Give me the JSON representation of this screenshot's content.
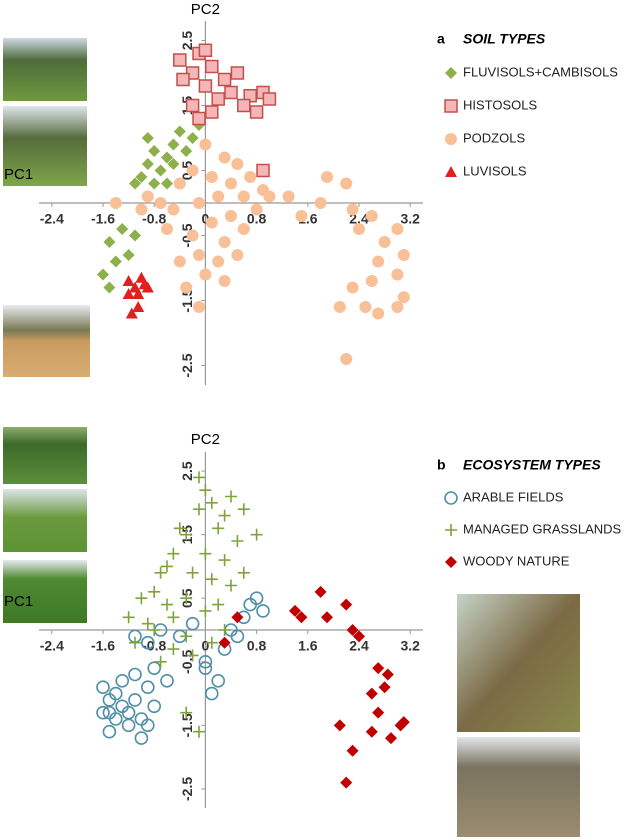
{
  "chart_data": [
    {
      "type": "scatter",
      "panel": "a",
      "title": "SOIL TYPES",
      "x_label": "PC1",
      "y_label": "PC2",
      "xlim": [
        -2.6,
        3.4
      ],
      "ylim": [
        -2.8,
        2.8
      ],
      "xticks": [
        -2.4,
        -1.6,
        -0.8,
        0,
        0.8,
        1.6,
        2.4,
        3.2
      ],
      "yticks": [
        -2.5,
        -1.5,
        -0.5,
        0.5,
        1.5,
        2.5
      ],
      "series": [
        {
          "name": "FLUVISOLS+CAMBISOLS",
          "color": "#8db04a",
          "marker": "diamond",
          "x": [
            -0.1,
            -0.2,
            -0.4,
            -0.3,
            -0.5,
            -0.6,
            -0.8,
            -0.7,
            -0.9,
            -1.0,
            -0.8,
            -1.1,
            -0.6,
            -0.9,
            -0.5,
            -1.3,
            -1.5,
            -1.4,
            -1.6,
            -1.5,
            -1.2,
            -1.1
          ],
          "values": [
            1.2,
            1.0,
            1.1,
            0.8,
            0.9,
            0.7,
            0.8,
            0.5,
            0.6,
            0.4,
            0.3,
            0.3,
            0.3,
            1.0,
            0.6,
            -0.4,
            -0.6,
            -0.9,
            -1.1,
            -1.3,
            -0.8,
            -0.5
          ]
        },
        {
          "name": "HISTOSOLS",
          "color": "#f4b6b6",
          "marker": "square",
          "x": [
            -0.4,
            -0.1,
            0.0,
            -0.2,
            0.1,
            -0.35,
            0.0,
            0.3,
            0.5,
            0.2,
            0.4,
            0.7,
            0.6,
            -0.2,
            0.1,
            0.9,
            0.8,
            1.0,
            -0.1,
            0.9
          ],
          "values": [
            2.2,
            2.3,
            2.35,
            2.0,
            2.1,
            1.9,
            1.8,
            1.9,
            2.0,
            1.6,
            1.7,
            1.65,
            1.5,
            1.5,
            1.4,
            1.7,
            1.4,
            1.6,
            1.3,
            0.5
          ]
        },
        {
          "name": "PODZOLS",
          "color": "#f9c097",
          "marker": "circle",
          "x": [
            0.0,
            0.3,
            0.1,
            -0.2,
            0.4,
            0.5,
            0.7,
            -0.4,
            0.2,
            -0.1,
            0.6,
            0.9,
            -0.7,
            -0.5,
            0.1,
            0.4,
            0.8,
            1.0,
            -0.2,
            0.3,
            0.6,
            -0.6,
            -0.1,
            0.2,
            0.5,
            -0.4,
            0.0,
            0.3,
            -0.3,
            -0.1,
            1.3,
            1.5,
            1.8,
            1.9,
            2.2,
            2.3,
            2.4,
            2.6,
            2.8,
            3.0,
            3.1,
            2.7,
            2.6,
            3.0,
            2.3,
            2.5,
            2.7,
            3.0,
            3.1,
            2.1,
            2.2,
            -1.4,
            -1.0,
            -0.9
          ],
          "values": [
            0.9,
            0.7,
            0.4,
            0.5,
            0.3,
            0.6,
            0.4,
            0.3,
            0.1,
            0.0,
            0.1,
            0.2,
            0.0,
            -0.1,
            -0.3,
            -0.2,
            -0.1,
            0.1,
            -0.5,
            -0.6,
            -0.4,
            -0.4,
            -0.8,
            -0.9,
            -0.8,
            -0.9,
            -1.1,
            -1.2,
            -1.3,
            -1.6,
            0.1,
            -0.2,
            0.0,
            0.4,
            0.3,
            -0.1,
            -0.4,
            -0.2,
            -0.6,
            -0.4,
            -0.8,
            -0.9,
            -1.2,
            -1.1,
            -1.3,
            -1.6,
            -1.7,
            -1.6,
            -1.45,
            -1.6,
            -2.4,
            0.0,
            -0.1,
            0.1
          ]
        },
        {
          "name": "LUVISOLS",
          "color": "#e02020",
          "marker": "triangle",
          "x": [
            -1.2,
            -1.1,
            -1.0,
            -0.9,
            -1.2,
            -1.05,
            -1.15,
            -1.05,
            -0.95
          ],
          "values": [
            -1.2,
            -1.3,
            -1.15,
            -1.3,
            -1.4,
            -1.4,
            -1.7,
            -1.6,
            -1.25
          ]
        }
      ]
    },
    {
      "type": "scatter",
      "panel": "b",
      "title": "ECOSYSTEM TYPES",
      "x_label": "PC1",
      "y_label": "PC2",
      "xlim": [
        -2.6,
        3.4
      ],
      "ylim": [
        -2.8,
        2.8
      ],
      "xticks": [
        -2.4,
        -1.6,
        -0.8,
        0,
        0.8,
        1.6,
        2.4,
        3.2
      ],
      "yticks": [
        -2.5,
        -1.5,
        -0.5,
        0.5,
        1.5,
        2.5
      ],
      "series": [
        {
          "name": "ARABLE FIELDS",
          "color": "#4f8fa8",
          "marker": "open-circle",
          "x": [
            -1.6,
            -1.5,
            -1.4,
            -1.5,
            -1.4,
            -1.3,
            -1.2,
            -1.1,
            -1.0,
            -1.2,
            -0.9,
            -1.0,
            -1.3,
            -1.1,
            -0.9,
            -0.8,
            -0.8,
            -0.6,
            -0.9,
            -1.1,
            -0.7,
            -0.4,
            0.0,
            0.2,
            0.1,
            0.0,
            0.3,
            0.4,
            0.6,
            0.7,
            0.8,
            0.9,
            0.5,
            -0.2,
            -1.5,
            -1.6
          ],
          "values": [
            -0.9,
            -1.1,
            -1.0,
            -1.3,
            -1.4,
            -1.2,
            -1.3,
            -1.1,
            -1.4,
            -1.5,
            -1.5,
            -1.7,
            -0.8,
            -0.7,
            -0.9,
            -1.2,
            -0.6,
            -0.8,
            -0.2,
            -0.1,
            0.0,
            -0.1,
            -0.5,
            -0.8,
            -1.0,
            -0.6,
            -0.3,
            0.0,
            0.2,
            0.4,
            0.5,
            0.3,
            -0.1,
            0.1,
            -1.6,
            -1.3
          ]
        },
        {
          "name": "MANAGED GRASSLANDS",
          "color": "#7fa33b",
          "marker": "plus",
          "x": [
            0.0,
            0.1,
            -0.1,
            0.4,
            0.6,
            -0.3,
            0.2,
            0.5,
            0.8,
            -0.5,
            0.0,
            0.3,
            -0.2,
            0.1,
            0.4,
            -0.7,
            -0.8,
            -1.0,
            -0.6,
            -0.3,
            0.2,
            -1.2,
            -0.9,
            -0.5,
            0.0,
            -0.3,
            0.1,
            -0.5,
            -0.2,
            -0.7,
            -0.1,
            -0.3,
            -0.8,
            0.3,
            -0.4,
            -0.1,
            0.3,
            0.6,
            -0.6,
            -1.1
          ],
          "values": [
            2.2,
            2.0,
            1.9,
            2.1,
            1.9,
            1.5,
            1.6,
            1.4,
            1.5,
            1.2,
            1.2,
            1.1,
            0.9,
            0.8,
            0.7,
            0.9,
            0.6,
            0.5,
            0.4,
            0.5,
            0.4,
            0.2,
            0.1,
            0.2,
            0.3,
            -0.1,
            -0.2,
            -0.3,
            -0.4,
            -0.5,
            -1.6,
            -1.3,
            0.0,
            1.8,
            1.6,
            2.4,
            0.0,
            0.9,
            1.0,
            -0.2
          ]
        },
        {
          "name": "WOODY NATURE",
          "color": "#c00000",
          "marker": "diamond",
          "x": [
            1.4,
            1.5,
            1.8,
            1.9,
            2.2,
            2.3,
            2.4,
            2.7,
            2.85,
            2.8,
            2.6,
            2.7,
            3.1,
            3.05,
            2.6,
            2.9,
            2.1,
            2.3,
            2.2,
            0.3,
            0.5
          ],
          "values": [
            0.3,
            0.2,
            0.6,
            0.2,
            0.4,
            0.0,
            -0.1,
            -0.6,
            -0.7,
            -0.9,
            -1.0,
            -1.3,
            -1.45,
            -1.5,
            -1.6,
            -1.7,
            -1.5,
            -1.9,
            -2.4,
            -0.2,
            0.2
          ]
        }
      ]
    }
  ]
}
